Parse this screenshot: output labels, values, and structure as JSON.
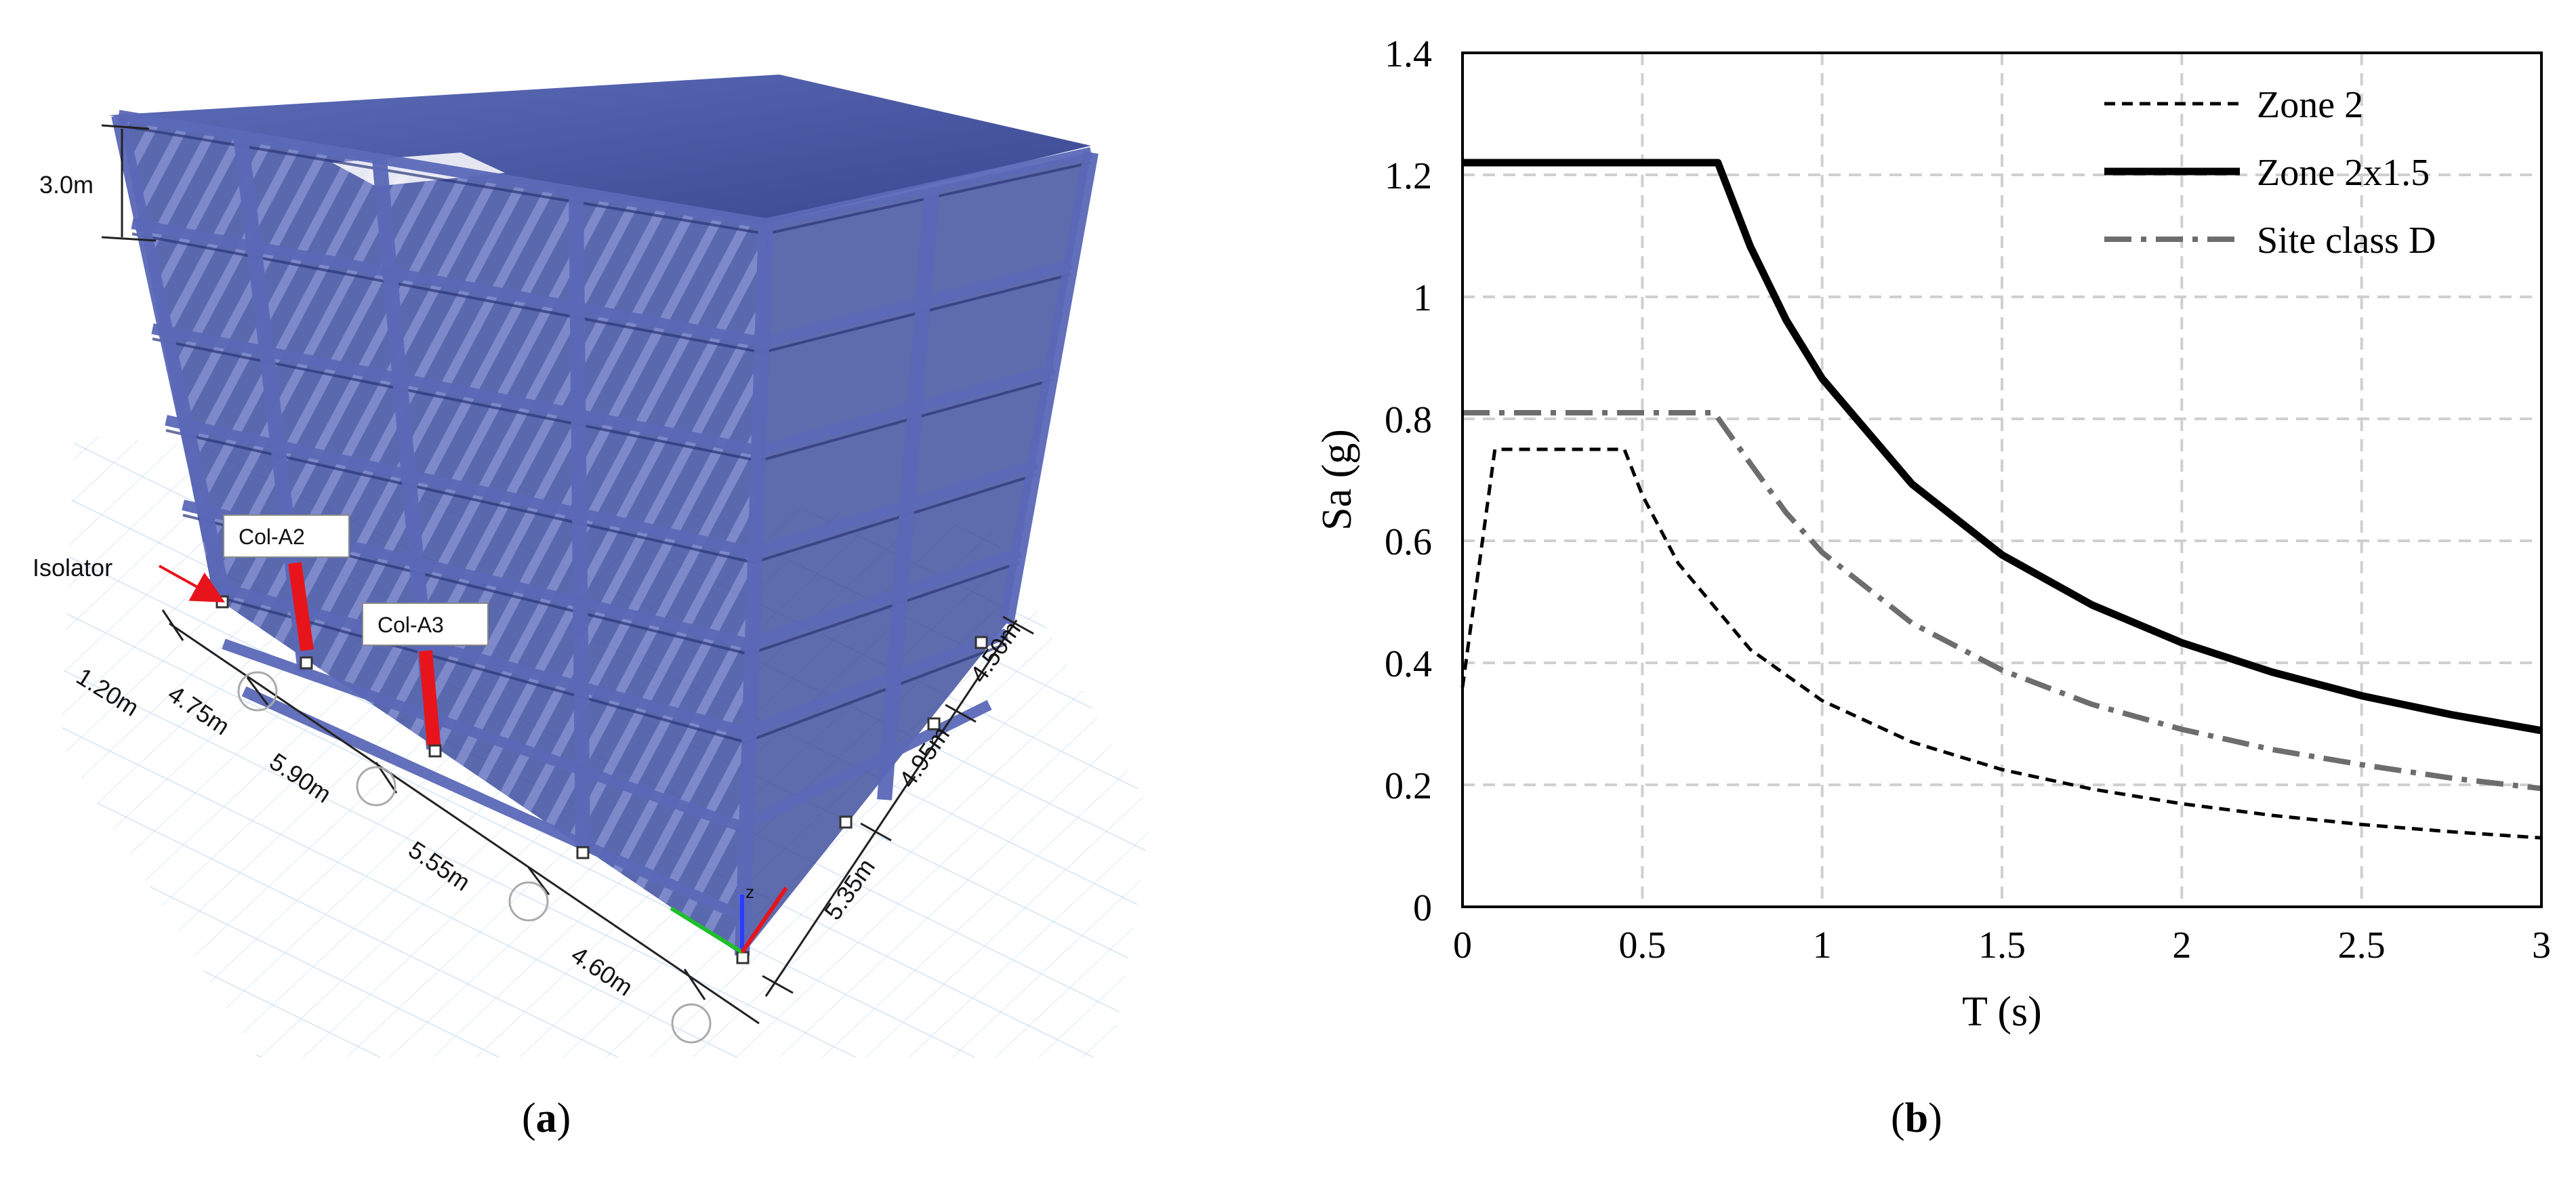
{
  "panel_a": {
    "caption_letter": "a",
    "labels": {
      "story_height": "3.0m",
      "isolator": "Isolator",
      "col_a2": "Col-A2",
      "col_a3": "Col-A3",
      "axis_z": "z"
    },
    "dims_front": [
      "1.20m",
      "4.75m",
      "5.90m",
      "5.55m",
      "4.60m"
    ],
    "dims_side": [
      "4.50m",
      "4.95m",
      "5.35m"
    ],
    "colors": {
      "frame": "#3b4a9a",
      "highlight": "#e8141b",
      "grid": "#b7d3ee"
    }
  },
  "panel_b": {
    "caption_letter": "b"
  },
  "chart_data": {
    "type": "line",
    "title": "",
    "xlabel": "T (s)",
    "ylabel": "Sa (g)",
    "xlim": [
      0,
      3
    ],
    "ylim": [
      0,
      1.4
    ],
    "xticks": [
      "0",
      "0.5",
      "1",
      "1.5",
      "2",
      "2.5",
      "3"
    ],
    "yticks": [
      "0",
      "0.2",
      "0.4",
      "0.6",
      "0.8",
      "1",
      "1.2",
      "1.4"
    ],
    "grid": true,
    "legend_position": "top-right",
    "series": [
      {
        "name": "Zone 2",
        "style": "dashed",
        "color": "#000000",
        "x": [
          0,
          0.09,
          0.45,
          0.5,
          0.6,
          0.8,
          1.0,
          1.25,
          1.5,
          1.75,
          2.0,
          2.25,
          2.5,
          2.75,
          3.0
        ],
        "y": [
          0.36,
          0.75,
          0.75,
          0.675,
          0.563,
          0.422,
          0.338,
          0.27,
          0.225,
          0.193,
          0.169,
          0.15,
          0.135,
          0.123,
          0.113
        ]
      },
      {
        "name": "Zone 2x1.5",
        "style": "solid",
        "color": "#000000",
        "x": [
          0,
          0.1,
          0.71,
          0.8,
          0.9,
          1.0,
          1.25,
          1.5,
          1.75,
          2.0,
          2.25,
          2.5,
          2.75,
          3.0
        ],
        "y": [
          1.22,
          1.22,
          1.22,
          1.083,
          0.962,
          0.866,
          0.693,
          0.577,
          0.495,
          0.433,
          0.385,
          0.346,
          0.315,
          0.289
        ]
      },
      {
        "name": "Site class D",
        "style": "dash-dot",
        "color": "#6d6d6d",
        "x": [
          0,
          0.1,
          0.7,
          0.8,
          0.9,
          1.0,
          1.25,
          1.5,
          1.75,
          2.0,
          2.25,
          2.5,
          2.75,
          3.0
        ],
        "y": [
          0.81,
          0.81,
          0.81,
          0.727,
          0.646,
          0.581,
          0.465,
          0.388,
          0.332,
          0.291,
          0.258,
          0.233,
          0.211,
          0.194
        ]
      }
    ]
  }
}
